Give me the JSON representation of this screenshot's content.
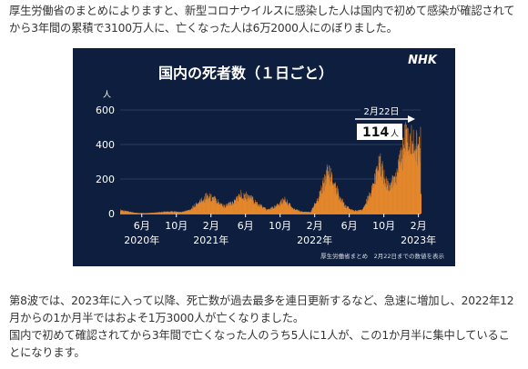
{
  "article": {
    "paragraph1": "厚生労働省のまとめによりますと、新型コロナウイルスに感染した人は国内で初めて感染が確認されてから3年間の累積で3100万人に、亡くなった人は6万2000人にのぼりました。",
    "paragraph2": "第8波では、2023年に入って以降、死亡数が過去最多を連日更新するなど、急速に増加し、2022年12月からの1か月半ではおよそ1万3000人が亡くなりました。",
    "paragraph3": "国内で初めて確認されてから3年間で亡くなった人のうち5人に1人が、この1か月半に集中していることになります。"
  },
  "colors": {
    "panel_bg": "#0e1e3e",
    "bar_fill": "#e8892c",
    "axis_text": "#ffffff",
    "grid": "#2c3c5c"
  },
  "chart_data": {
    "type": "bar",
    "title": "国内の死者数（１日ごと）",
    "brand": "NHK",
    "y_unit": "人",
    "ylim": [
      0,
      600
    ],
    "y_ticks": [
      0,
      200,
      400,
      600
    ],
    "x_ticks": [
      {
        "label": "6月",
        "date": "2020-06"
      },
      {
        "label": "10月",
        "date": "2020-10"
      },
      {
        "label": "2月",
        "date": "2021-02"
      },
      {
        "label": "6月",
        "date": "2021-06"
      },
      {
        "label": "10月",
        "date": "2021-10"
      },
      {
        "label": "2月",
        "date": "2022-02"
      },
      {
        "label": "6月",
        "date": "2022-06"
      },
      {
        "label": "10月",
        "date": "2022-10"
      },
      {
        "label": "2月",
        "date": "2023-02"
      }
    ],
    "year_labels": [
      {
        "label": "2020年",
        "date": "2020-06"
      },
      {
        "label": "2021年",
        "date": "2021-02"
      },
      {
        "label": "2022年",
        "date": "2022-02"
      },
      {
        "label": "2023年",
        "date": "2023-02"
      }
    ],
    "grid": true,
    "annotation": {
      "date_label": "2月22日",
      "value": 114,
      "unit": "人"
    },
    "source": "厚生労働省まとめ　2月22日までの数値を表示",
    "series": [
      {
        "x_start": "2020-04",
        "x_step": "month",
        "values": [
          20,
          10,
          3,
          2,
          5,
          10,
          12,
          8,
          20,
          60,
          100,
          80,
          40,
          60,
          110,
          90,
          50,
          20,
          40,
          80,
          25,
          10,
          8,
          100,
          240,
          130,
          40,
          15,
          20,
          120,
          280,
          140,
          220,
          430,
          390
        ]
      }
    ]
  }
}
